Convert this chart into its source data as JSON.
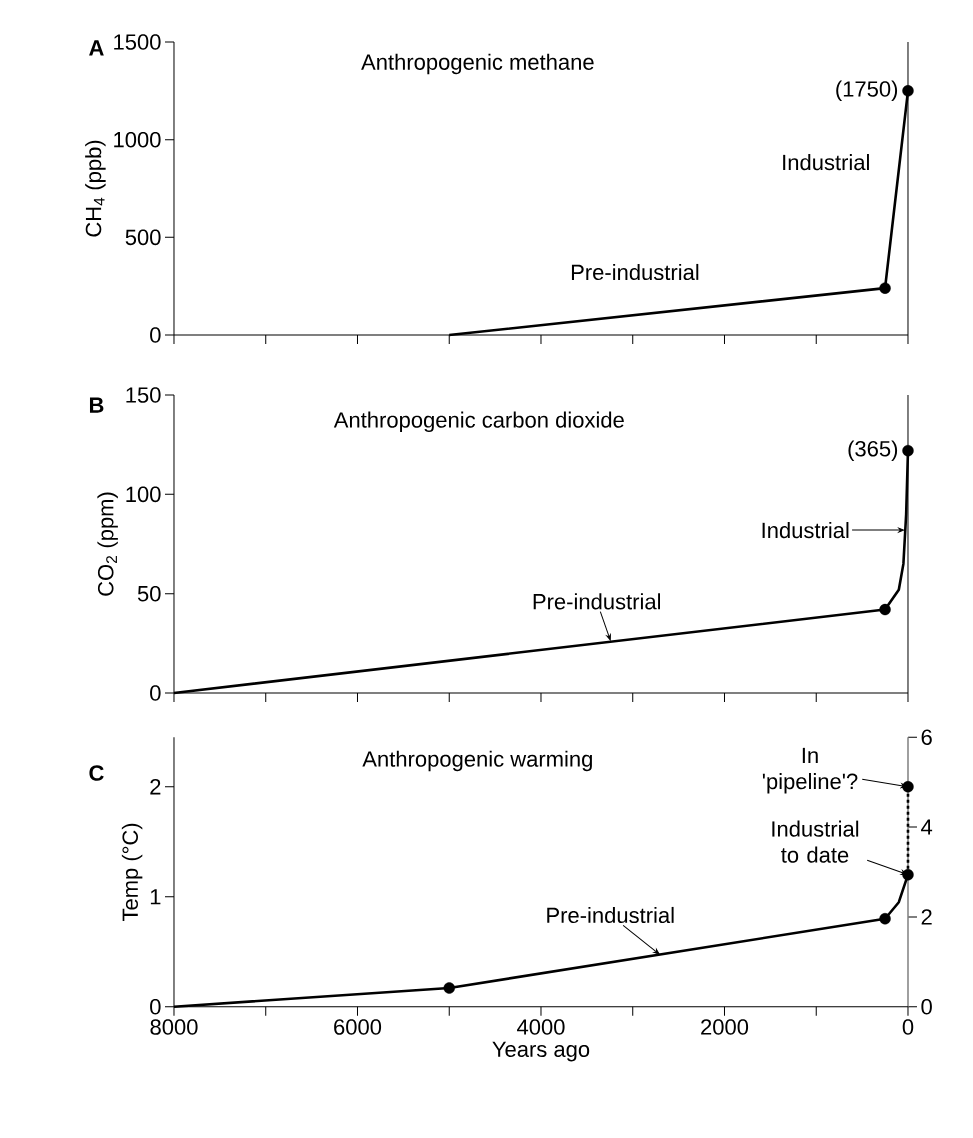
{
  "chart_data": [
    {
      "type": "line",
      "title": "A",
      "subtitle": "Anthropogenic methane",
      "ylabel": "CH$_{4}$ (ppb)",
      "xlim": [
        8000,
        0
      ],
      "ylim": [
        0,
        1500
      ],
      "yticks": [
        0,
        500,
        1000,
        1500
      ],
      "xticks": [
        8000,
        {
          "value": 7000,
          "label": null
        },
        6000,
        {
          "value": 5000,
          "label": null
        },
        4000,
        {
          "value": 3000,
          "label": null
        },
        2000,
        {
          "value": 1000,
          "label": null
        },
        0
      ],
      "tick_labels": "y",
      "series": [
        {
          "color": "#000000",
          "x": [
            5000,
            250,
            0
          ],
          "values": [
            0,
            240,
            1250
          ],
          "marker": "none",
          "line_style": "solid"
        },
        {
          "type": "scatter",
          "color": "#000000",
          "x": [
            250,
            0
          ],
          "values": [
            240,
            1250
          ],
          "marker": "circle"
        }
      ],
      "annotations": [
        {
          "text": "(1750)",
          "x": 0,
          "y": 1250
        },
        "Industrial",
        "Pre-industrial"
      ]
    },
    {
      "type": "line",
      "title": "B",
      "subtitle": "Anthropogenic carbon dioxide",
      "ylabel": "CO$_{2}$ (ppm)",
      "xlim": [
        8000,
        0
      ],
      "ylim": [
        0,
        150
      ],
      "yticks": [
        0,
        50,
        100,
        150
      ],
      "xticks": [
        8000,
        {
          "value": 7000,
          "label": null
        },
        6000,
        {
          "value": 5000,
          "label": null
        },
        4000,
        {
          "value": 3000,
          "label": null
        },
        2000,
        {
          "value": 1000,
          "label": null
        },
        0
      ],
      "tick_labels": "y",
      "series": [
        {
          "color": "#000000",
          "x": [
            8000,
            250,
            100,
            50,
            20,
            0
          ],
          "values": [
            0,
            42,
            52,
            65,
            90,
            122
          ],
          "marker": "none",
          "line_style": "solid"
        },
        {
          "type": "scatter",
          "color": "#000000",
          "x": [
            250,
            0
          ],
          "values": [
            42,
            122
          ],
          "marker": "circle"
        }
      ],
      "annotations": [
        {
          "text": "(365)",
          "x": 0,
          "y": 122
        },
        {
          "text": "Industrial",
          "x": 30,
          "y": 82
        },
        {
          "text": "Pre-industrial",
          "x": 3240,
          "y": 26
        }
      ]
    },
    {
      "type": "line",
      "title": "C",
      "subtitle": "Anthropogenic warming",
      "ylabel": "Temp (°C)",
      "xlabel": "Years ago",
      "xlim": [
        8000,
        0
      ],
      "ylim": [
        0,
        2.45
      ],
      "yticks": [
        0,
        1,
        2
      ],
      "y2lim": [
        0,
        6
      ],
      "y2ticks": [
        0,
        2,
        4,
        6
      ],
      "xticks": [
        8000,
        {
          "value": 7000,
          "label": null
        },
        6000,
        {
          "value": 5000,
          "label": null
        },
        4000,
        {
          "value": 3000,
          "label": null
        },
        2000,
        {
          "value": 1000,
          "label": null
        },
        0
      ],
      "series": [
        {
          "color": "#000000",
          "x": [
            8000,
            5000,
            250,
            100,
            0
          ],
          "values": [
            0,
            0.17,
            0.8,
            0.95,
            1.2
          ],
          "marker": "none",
          "line_style": "solid"
        },
        {
          "color": "#000000",
          "x": [
            0,
            0
          ],
          "values": [
            1.2,
            2.0
          ],
          "marker": "none",
          "line_style": "dotted"
        },
        {
          "type": "scatter",
          "color": "#000000",
          "x": [
            5000,
            250,
            0,
            0
          ],
          "values": [
            0.17,
            0.8,
            1.2,
            2.0
          ],
          "marker": "circle"
        }
      ],
      "annotations": [
        {
          "text": "In 'pipeline'?",
          "x": 0,
          "y": 2.0
        },
        {
          "text": "Industrial to date",
          "x": 0,
          "y": 1.2
        },
        {
          "text": "Pre-industrial",
          "x": 2700,
          "y": 0.47
        }
      ]
    }
  ]
}
